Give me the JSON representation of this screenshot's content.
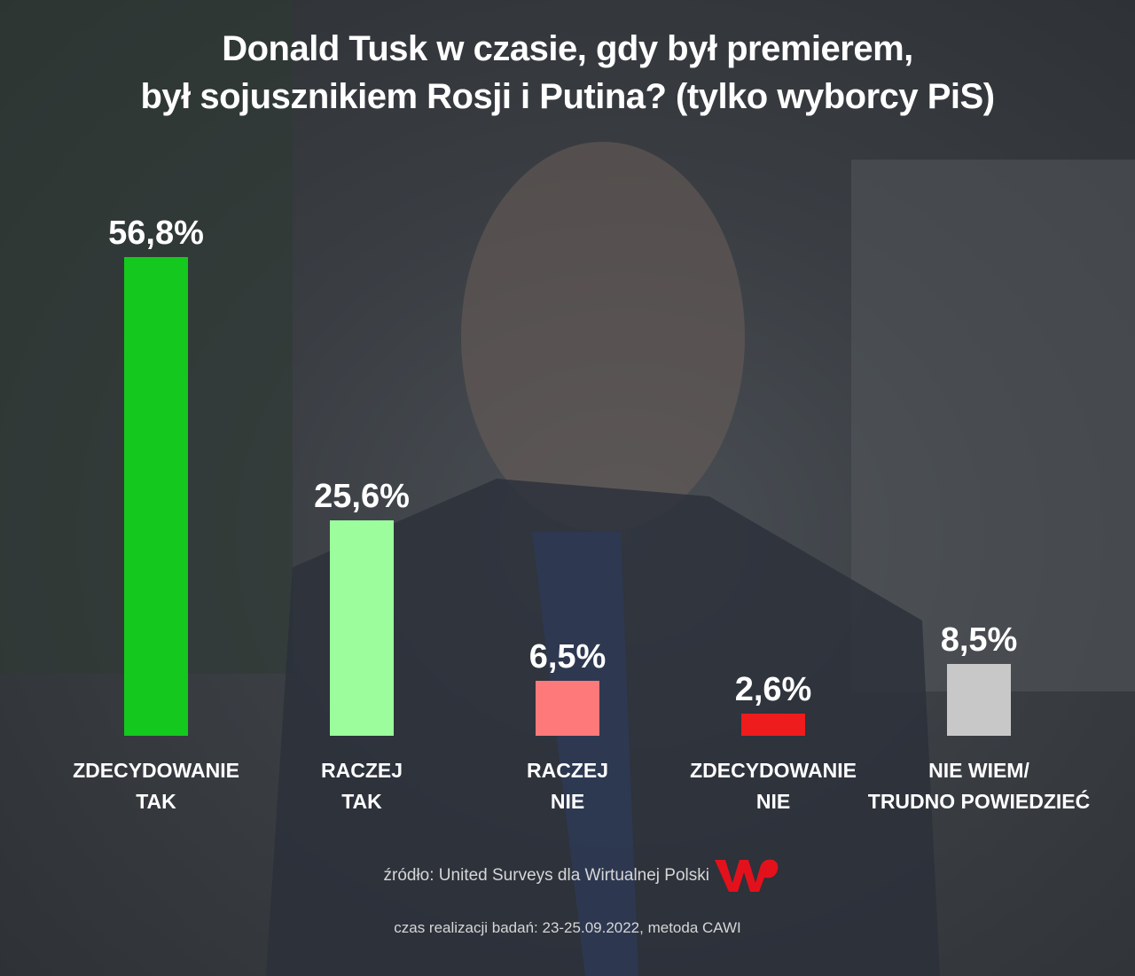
{
  "chart_data": {
    "type": "bar",
    "title": "Donald Tusk w czasie, gdy był premierem,\nbył sojusznikiem Rosji i Putina? (tylko wyborcy PiS)",
    "categories": [
      "ZDECYDOWANIE\nTAK",
      "RACZEJ\nTAK",
      "RACZEJ\nNIE",
      "ZDECYDOWANIE\nNIE",
      "NIE WIEM/\nTRUDNO POWIEDZIEĆ"
    ],
    "values": [
      56.8,
      25.6,
      6.5,
      2.6,
      8.5
    ],
    "value_labels": [
      "56,8%",
      "25,6%",
      "6,5%",
      "2,6%",
      "8,5%"
    ],
    "colors": [
      "#15c81e",
      "#9cfd9c",
      "#fe7a7a",
      "#ee1c1c",
      "#c8c8c8"
    ],
    "source": "źródło: United Surveys dla Wirtualnej Polski",
    "note": "czas realizacji badań: 23-25.09.2022, metoda CAWI"
  }
}
